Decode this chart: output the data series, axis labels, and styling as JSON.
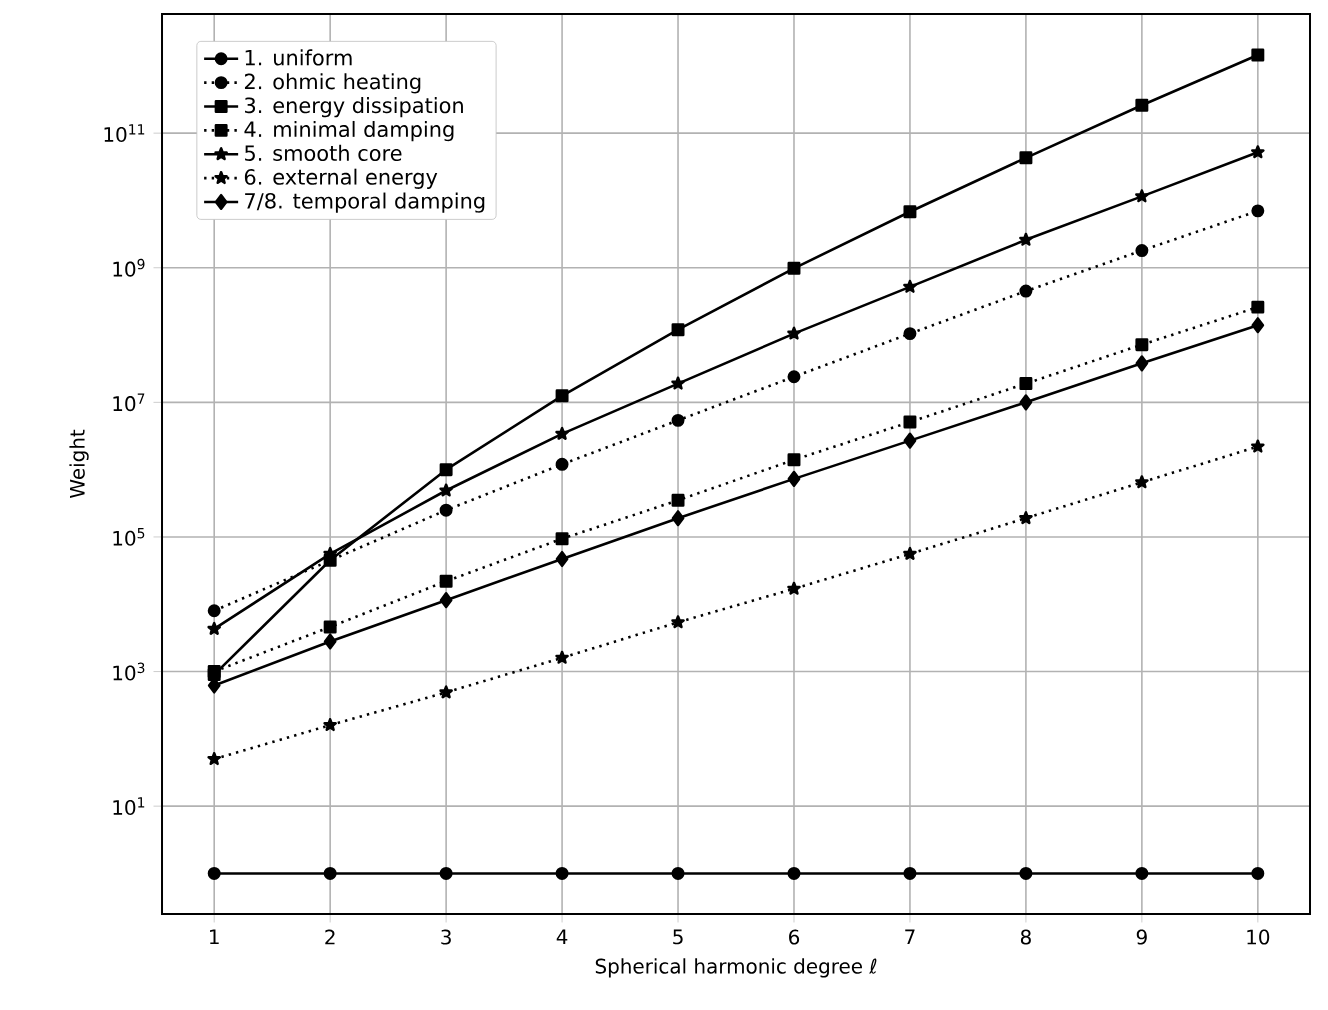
{
  "chart_data": {
    "type": "line",
    "xlabel": "Spherical harmonic degree ℓ",
    "ylabel": "Weight",
    "log": "y",
    "grid": true,
    "legend": "top left",
    "x": [
      1,
      2,
      3,
      4,
      5,
      6,
      7,
      8,
      9,
      10
    ],
    "xlim": [
      0.55,
      10.45
    ],
    "ylim": [
      0.25,
      5900000000000.0
    ],
    "xticks": [
      1,
      2,
      3,
      4,
      5,
      6,
      7,
      8,
      9,
      10
    ],
    "yticks": [
      {
        "value": 10,
        "label": "10$^{1}$"
      },
      {
        "value": 1000,
        "label": "10$^{3}$"
      },
      {
        "value": 100000,
        "label": "10$^{5}$"
      },
      {
        "value": 10000000,
        "label": "10$^{7}$"
      },
      {
        "value": 1000000000,
        "label": "10$^{9}$"
      },
      {
        "value": 100000000000,
        "label": "10$^{11}$"
      }
    ],
    "series": [
      {
        "name": "1. uniform",
        "color": "#000000",
        "marker": "circle",
        "line_style": "solid",
        "values": [
          1,
          1,
          1,
          1,
          1,
          1,
          1,
          1,
          1,
          1
        ]
      },
      {
        "name": "2. ohmic heating",
        "color": "#000000",
        "marker": "circle",
        "line_style": "dotted",
        "values": [
          8000,
          null,
          250000,
          1200000,
          5400000,
          24000000,
          105000000,
          450000000,
          1800000000,
          7000000000
        ]
      },
      {
        "name": "3. energy dissipation",
        "color": "#000000",
        "marker": "square",
        "line_style": "solid",
        "values": [
          900,
          45000,
          1000000,
          12500000,
          120000000,
          980000000,
          6800000000,
          43000000000,
          260000000000,
          1450000000000
        ]
      },
      {
        "name": "4. minimal damping",
        "color": "#000000",
        "marker": "square",
        "line_style": "dotted",
        "values": [
          1000,
          4600,
          22000,
          94000,
          350000,
          1400000,
          5100000,
          19000000,
          72000000,
          260000000
        ]
      },
      {
        "name": "5. smooth core",
        "color": "#000000",
        "marker": "star",
        "line_style": "solid",
        "values": [
          4300,
          56000,
          490000,
          3400000,
          19000000,
          105000000,
          520000000,
          2600000000,
          11500000000,
          52000000000
        ]
      },
      {
        "name": "6. external energy",
        "color": "#000000",
        "marker": "star",
        "line_style": "dotted",
        "values": [
          50,
          160,
          490,
          1600,
          5400,
          17000,
          56000,
          190000,
          650000,
          2200000
        ]
      },
      {
        "name": "7/8. temporal damping",
        "color": "#000000",
        "marker": "diamond",
        "line_style": "solid",
        "values": [
          620,
          2800,
          11500,
          47000,
          190000,
          730000,
          2700000,
          10000000,
          38000000,
          140000000
        ]
      }
    ]
  }
}
